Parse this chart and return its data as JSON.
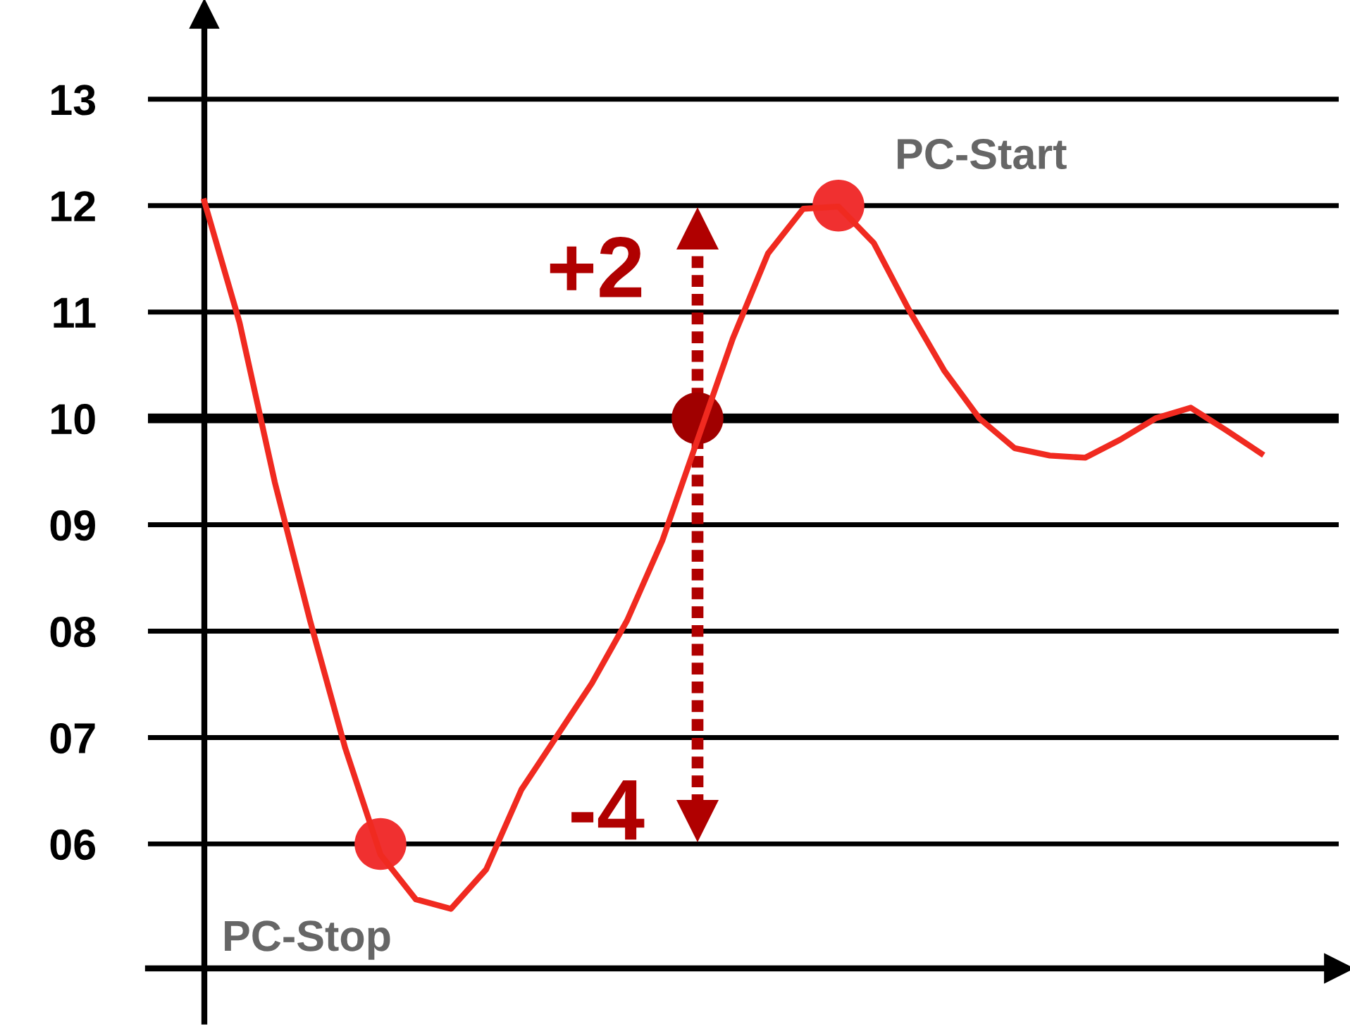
{
  "chart_data": {
    "type": "line",
    "categories": [
      null,
      null,
      null,
      null,
      null,
      null,
      null,
      null,
      null,
      null,
      null,
      null,
      null,
      null,
      null,
      null,
      null,
      null,
      null,
      null,
      null,
      null,
      null,
      null,
      null,
      null,
      null,
      null,
      null,
      null,
      null
    ],
    "series": [
      {
        "color": "#f02a20",
        "values": [
          12.04,
          10.9,
          9.4,
          8.1,
          6.9,
          5.9,
          5.48,
          5.39,
          5.76,
          6.51,
          7.01,
          7.51,
          8.1,
          8.85,
          9.8,
          10.75,
          11.55,
          11.97,
          11.99,
          11.65,
          11.02,
          10.45,
          10.0,
          9.72,
          9.65,
          9.63,
          9.8,
          10.0,
          10.1,
          9.89,
          9.67
        ]
      },
      {
        "type": "scatter",
        "colors": [
          null,
          null,
          null,
          null,
          null,
          "#f03030",
          null,
          null,
          null,
          null,
          null,
          null,
          null,
          null,
          "#a00000",
          null,
          null,
          null,
          "#f03030",
          null,
          null,
          null,
          null,
          null,
          null,
          null,
          null,
          null,
          null,
          null,
          null
        ],
        "values": [
          null,
          null,
          null,
          null,
          null,
          6,
          null,
          null,
          null,
          null,
          null,
          null,
          null,
          null,
          10,
          null,
          null,
          null,
          12,
          null,
          null,
          null,
          null,
          null,
          null,
          null,
          null,
          null,
          null,
          null,
          null
        ]
      }
    ],
    "ylim": [
      4.83,
      13.8
    ],
    "yticks": [
      {
        "value": 6,
        "label": "06"
      },
      {
        "value": 7,
        "label": "07"
      },
      {
        "value": 8,
        "label": "08"
      },
      {
        "value": 9,
        "label": "09"
      },
      10,
      11,
      12,
      13
    ],
    "grid": "y",
    "tick_labels": "y",
    "ref_lines": [
      {
        "axis": "y",
        "value": 10,
        "color": "#000000"
      }
    ],
    "annotations": [
      "PC-Stop",
      "PC-Start",
      "+2",
      "-4"
    ]
  }
}
